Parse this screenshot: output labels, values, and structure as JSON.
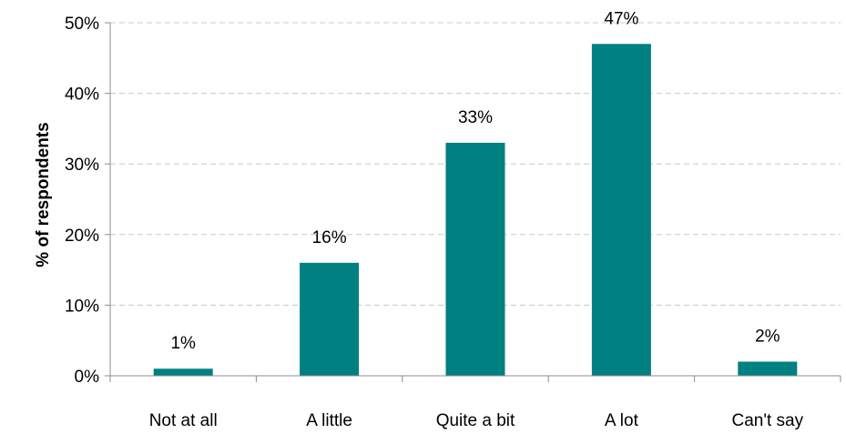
{
  "chart_data": {
    "type": "bar",
    "title": "",
    "xlabel": "",
    "ylabel": "% of respondents",
    "categories": [
      "Not at all",
      "A little",
      "Quite a bit",
      "A lot",
      "Can't say"
    ],
    "values": [
      1,
      16,
      33,
      47,
      2
    ],
    "data_labels": [
      "1%",
      "16%",
      "33%",
      "47%",
      "2%"
    ],
    "ylim": [
      0,
      50
    ],
    "yticks": [
      0,
      10,
      20,
      30,
      40,
      50
    ],
    "ytick_labels": [
      "0%",
      "10%",
      "20%",
      "30%",
      "40%",
      "50%"
    ],
    "grid": true,
    "legend": "none",
    "colors": {
      "bar": "#008080",
      "grid": "#c8c8c8",
      "axis": "#8c8c8c"
    }
  }
}
